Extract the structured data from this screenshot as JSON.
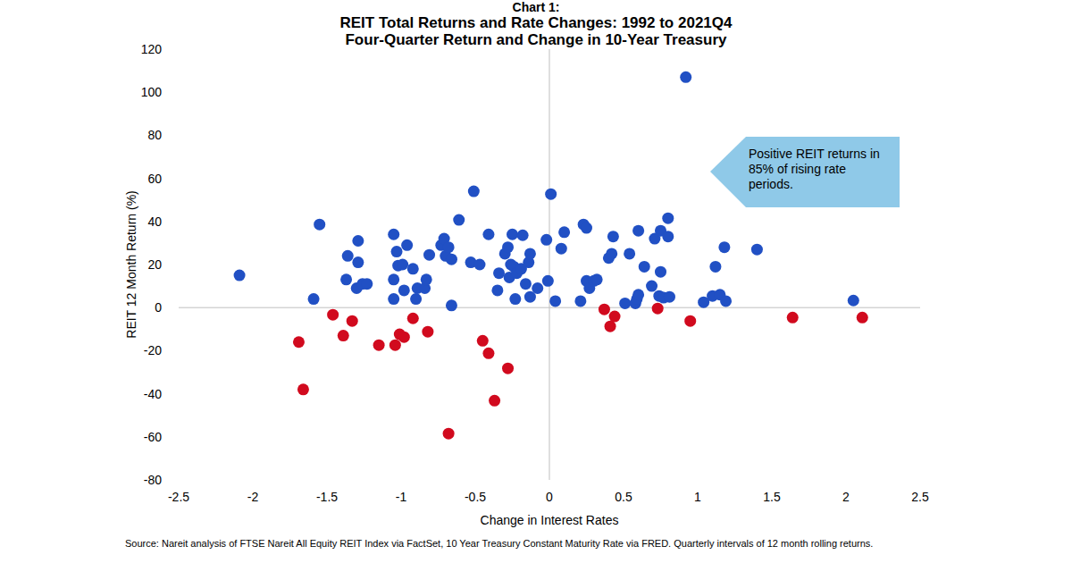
{
  "chart_data": {
    "type": "scatter",
    "heading": "Chart 1:",
    "title": "REIT Total Returns and Rate Changes: 1992 to 2021Q4",
    "subtitle": "Four-Quarter Return and Change in 10-Year Treasury",
    "x_label": "Change in Interest Rates",
    "y_label": "REIT 12 Month Return (%)",
    "annotation": "Positive REIT returns in 85% of rising rate periods.",
    "source": "Source: Nareit analysis of FTSE Nareit All Equity REIT Index via FactSet, 10 Year Treasury Constant Maturity Rate via FRED. Quarterly intervals of 12 month rolling returns.",
    "xlim": [
      -2.5,
      2.5
    ],
    "xticks": [
      -2.5,
      -2,
      -1.5,
      -1,
      -0.5,
      0,
      0.5,
      1,
      1.5,
      2,
      2.5
    ],
    "ylim": [
      -80,
      120
    ],
    "yticks": [
      -80,
      -60,
      -40,
      -20,
      0,
      20,
      40,
      60,
      80,
      100,
      120
    ],
    "grid": false,
    "series": [
      {
        "color": "#2150c4",
        "marker": "circle",
        "x": [
          -2.09,
          -1.55,
          -1.59,
          -1.36,
          -1.29,
          -1.29,
          -1.37,
          -1.3,
          -1.26,
          -1.23,
          -1.05,
          -1.03,
          -0.96,
          -1.05,
          -1.05,
          -1.02,
          -0.99,
          -0.92,
          -0.98,
          -0.9,
          -0.89,
          -0.84,
          -0.83,
          -0.81,
          -0.73,
          -0.71,
          -0.7,
          -0.68,
          -0.66,
          -0.66,
          -0.61,
          -0.53,
          -0.51,
          -0.47,
          -0.41,
          -0.35,
          -0.34,
          -0.3,
          -0.28,
          -0.27,
          -0.26,
          -0.25,
          -0.24,
          -0.23,
          -0.22,
          -0.18,
          -0.19,
          -0.16,
          -0.14,
          -0.13,
          -0.13,
          -0.08,
          -0.02,
          0.01,
          -0.01,
          0.04,
          0.08,
          0.1,
          0.21,
          0.23,
          0.25,
          0.25,
          0.27,
          0.3,
          0.32,
          0.4,
          0.42,
          0.43,
          0.51,
          0.54,
          0.58,
          0.59,
          0.6,
          0.6,
          0.64,
          0.69,
          0.71,
          0.75,
          0.74,
          0.75,
          0.77,
          0.8,
          0.8,
          0.81,
          0.92,
          1.04,
          1.1,
          1.12,
          1.15,
          1.18,
          1.19,
          1.4,
          2.05
        ],
        "values": [
          15,
          38.6,
          4,
          24,
          31,
          21,
          13,
          9,
          11,
          11,
          34,
          26,
          29,
          13,
          4,
          19.5,
          20,
          18,
          8,
          4,
          9,
          9,
          13,
          24.5,
          29,
          32,
          24,
          28,
          22.4,
          1,
          40.7,
          21,
          54,
          20,
          34,
          8,
          16,
          25,
          28,
          14,
          20,
          34,
          19,
          4,
          16,
          33.6,
          18,
          11,
          21,
          25,
          5,
          9,
          31.5,
          52.7,
          12.4,
          3,
          27.4,
          35,
          3,
          38.6,
          37,
          12.4,
          9,
          12.4,
          13,
          23,
          25,
          33,
          2,
          25,
          2,
          4,
          6,
          35.7,
          19,
          10,
          32,
          35.7,
          5.4,
          16.6,
          4.6,
          41.5,
          33,
          5,
          107,
          2.5,
          5.4,
          19,
          6,
          28,
          3,
          27,
          3.3
        ]
      },
      {
        "color": "#d10a1e",
        "marker": "circle",
        "x": [
          -1.69,
          -1.66,
          -1.46,
          -1.39,
          -1.33,
          -1.15,
          -1.04,
          -1.01,
          -0.98,
          -0.92,
          -0.82,
          -0.68,
          -0.45,
          -0.41,
          -0.37,
          -0.28,
          0.37,
          0.41,
          0.44,
          0.73,
          0.95,
          1.64,
          2.11
        ],
        "values": [
          -16,
          -38,
          -3.3,
          -13,
          -6.2,
          -17.4,
          -17.4,
          -12.4,
          -13.7,
          -5,
          -11.2,
          -58.5,
          -15.4,
          -21.2,
          -43.2,
          -28.2,
          -0.8,
          -8.7,
          -4.1,
          -0.4,
          -6.2,
          -4.6,
          -4.6
        ]
      }
    ]
  }
}
